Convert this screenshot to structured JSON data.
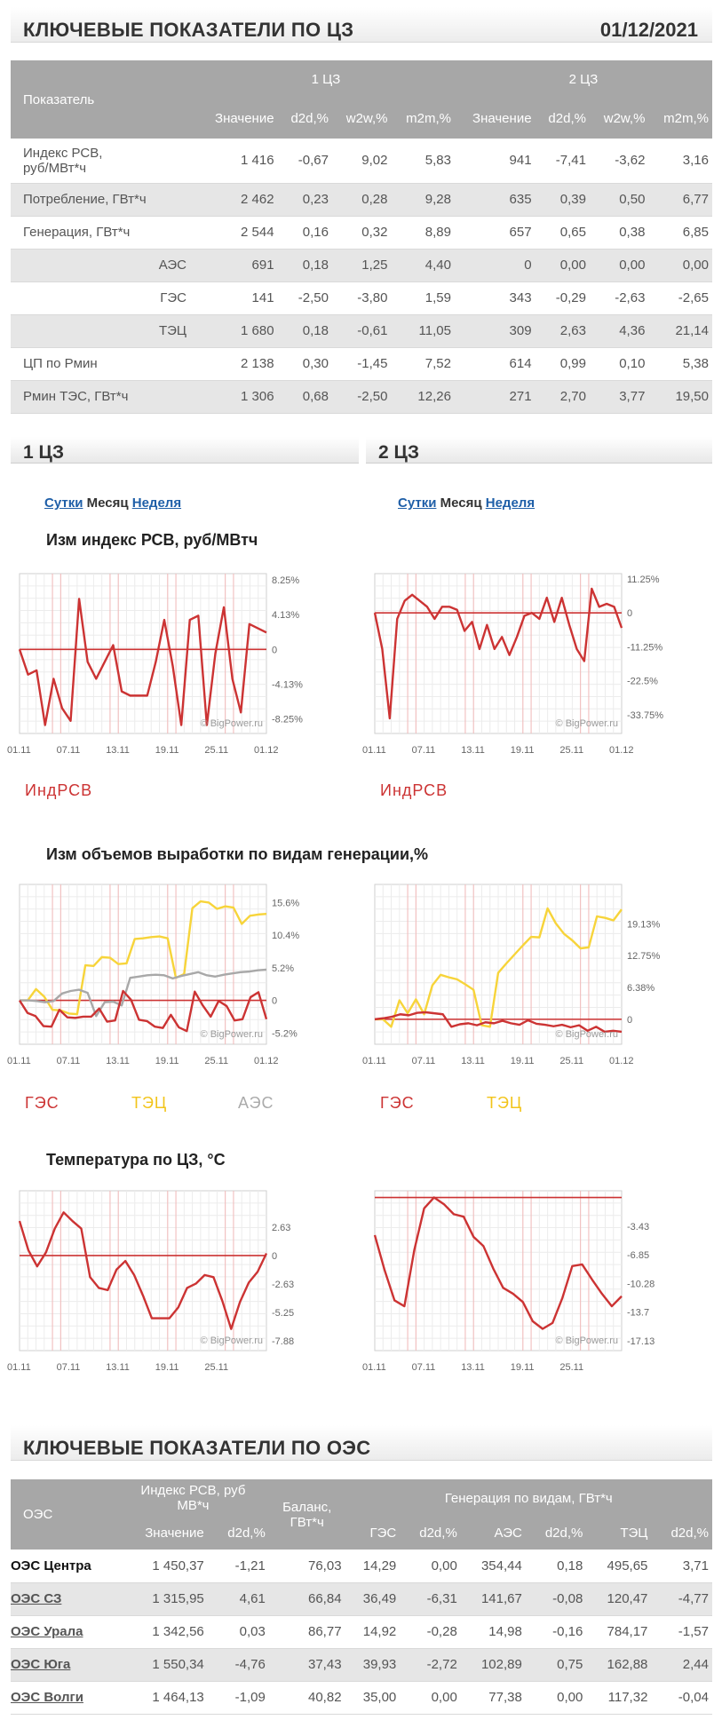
{
  "header1": {
    "title": "КЛЮЧЕВЫЕ ПОКАЗАТЕЛИ ПО ЦЗ",
    "date": "01/12/2021"
  },
  "kt": {
    "col_label": "Показатель",
    "zone1": "1 ЦЗ",
    "zone2": "2 ЦЗ",
    "sub": [
      "Значение",
      "d2d,%",
      "w2w,%",
      "m2m,%",
      "Значение",
      "d2d,%",
      "w2w,%",
      "m2m,%"
    ],
    "rows": [
      {
        "name": "Индекс РСВ, руб/МВт*ч",
        "name1": "Индекс РСВ,",
        "name2": "руб/МВт*ч",
        "indent": false,
        "vals": [
          "1 416",
          "-0,67",
          "9,02",
          "5,83",
          "941",
          "-7,41",
          "-3,62",
          "3,16"
        ]
      },
      {
        "name": "Потребление, ГВт*ч",
        "indent": false,
        "vals": [
          "2 462",
          "0,23",
          "0,28",
          "9,28",
          "635",
          "0,39",
          "0,50",
          "6,77"
        ]
      },
      {
        "name": "Генерация, ГВт*ч",
        "indent": false,
        "vals": [
          "2 544",
          "0,16",
          "0,32",
          "8,89",
          "657",
          "0,65",
          "0,38",
          "6,85"
        ]
      },
      {
        "name": "АЭС",
        "indent": true,
        "vals": [
          "691",
          "0,18",
          "1,25",
          "4,40",
          "0",
          "0,00",
          "0,00",
          "0,00"
        ]
      },
      {
        "name": "ГЭС",
        "indent": true,
        "vals": [
          "141",
          "-2,50",
          "-3,80",
          "1,59",
          "343",
          "-0,29",
          "-2,63",
          "-2,65"
        ]
      },
      {
        "name": "ТЭЦ",
        "indent": true,
        "vals": [
          "1 680",
          "0,18",
          "-0,61",
          "11,05",
          "309",
          "2,63",
          "4,36",
          "21,14"
        ]
      },
      {
        "name": "ЦП по Рмин",
        "indent": false,
        "vals": [
          "2 138",
          "0,30",
          "-1,45",
          "7,52",
          "614",
          "0,99",
          "0,10",
          "5,38"
        ]
      },
      {
        "name": "Рмин ТЭС, ГВт*ч",
        "indent": false,
        "vals": [
          "1 306",
          "0,68",
          "-2,50",
          "12,26",
          "271",
          "2,70",
          "3,77",
          "19,50"
        ]
      }
    ]
  },
  "sections": {
    "z1": "1 ЦЗ",
    "z2": "2 ЦЗ"
  },
  "period": {
    "day": "Сутки",
    "month": "Месяц",
    "week": "Неделя"
  },
  "chart_titles": {
    "price": "Изм индекс РСВ, руб/МВтч",
    "gen": "Изм объемов выработки по видам генерации,%",
    "temp": "Температура по ЦЗ, °С"
  },
  "watermark": "© BigPower.ru",
  "legends": {
    "price": "ИндРСВ",
    "ges": "ГЭС",
    "tec": "ТЭЦ",
    "aes": "АЭС"
  },
  "colors": {
    "price": "#cc3333",
    "ges": "#cc3333",
    "tec": "#f7d43a",
    "aes": "#a8a8a8"
  },
  "chart_data": [
    {
      "id": "price1",
      "type": "line",
      "yticks": [
        "8.25%",
        "4.13%",
        "0",
        "-4.13%",
        "-8.25%"
      ],
      "ylim": [
        -10,
        9
      ],
      "xticks": [
        "01.11",
        "07.11",
        "13.11",
        "19.11",
        "25.11",
        "01.12"
      ],
      "series": [
        {
          "name": "ИндРСВ",
          "values": [
            0,
            -3,
            -2.5,
            -9,
            -3.5,
            -7,
            -8.5,
            6,
            -1.5,
            -3.5,
            -1.5,
            0.5,
            -5,
            -5.5,
            -5.5,
            -5.5,
            -1.5,
            3.5,
            -2,
            -9,
            3.5,
            4,
            -9,
            -0.5,
            5,
            -3.5,
            -7.5,
            3,
            2.5,
            2
          ]
        }
      ]
    },
    {
      "id": "price2",
      "type": "line",
      "yticks": [
        "11.25%",
        "0",
        "-11.25%",
        "-22.5%",
        "-33.75%"
      ],
      "ylim": [
        -40,
        13
      ],
      "xticks": [
        "01.11",
        "07.11",
        "13.11",
        "19.11",
        "25.11",
        "01.12"
      ],
      "series": [
        {
          "name": "ИндРСВ",
          "values": [
            0,
            -12,
            -35,
            -2,
            4,
            6,
            4,
            2,
            -2,
            2,
            2,
            1,
            -6,
            -3,
            -12,
            -4,
            -12,
            -8,
            -14,
            -8,
            -1,
            0,
            -2,
            5,
            -3,
            5,
            -4,
            -12,
            -16,
            8,
            2,
            3,
            2,
            -5
          ]
        }
      ]
    },
    {
      "id": "gen1",
      "type": "line",
      "yticks": [
        "15.6%",
        "10.4%",
        "5.2%",
        "0",
        "-5.2%"
      ],
      "ylim": [
        -7,
        18.5
      ],
      "xticks": [
        "01.11",
        "07.11",
        "13.11",
        "19.11",
        "25.11",
        "01.12"
      ],
      "series": [
        {
          "name": "ТЭЦ",
          "values": [
            0,
            0,
            1.8,
            0.6,
            -1.5,
            -1.6,
            -2.1,
            -2.2,
            5.6,
            5.5,
            6.9,
            6.8,
            5.8,
            5.9,
            9.8,
            9.9,
            10.1,
            10.2,
            9.9,
            3.6,
            4.2,
            14.7,
            15.8,
            15.6,
            14.6,
            15.0,
            14.8,
            12.2,
            13.5,
            13.7,
            13.8
          ]
        },
        {
          "name": "АЭС",
          "values": [
            0,
            0,
            -0.1,
            -0.3,
            -0.1,
            1.1,
            1.5,
            1.7,
            1.2,
            -2.5,
            -0.3,
            -0.2,
            -0.8,
            3.6,
            3.8,
            4.0,
            4.1,
            4.0,
            3.5,
            3.9,
            4.2,
            4.5,
            4.0,
            3.8,
            4.1,
            4.3,
            4.5,
            4.6,
            4.8,
            4.9
          ]
        },
        {
          "name": "ГЭС",
          "values": [
            0,
            -2.0,
            -2.5,
            -4.1,
            -4.2,
            -1.5,
            -2.7,
            -2.8,
            -2.6,
            -2.6,
            -1.3,
            -3.4,
            -3.2,
            1.5,
            0.1,
            -3.1,
            -3.3,
            -4.2,
            -4.4,
            -2.3,
            -4.3,
            -4.9,
            1.4,
            -0.8,
            -2.6,
            -0.1,
            -0.9,
            -3.2,
            -3.0,
            0.5,
            1.3,
            -3.0
          ]
        }
      ]
    },
    {
      "id": "gen2",
      "type": "line",
      "yticks": [
        "19.13%",
        "12.75%",
        "6.38%",
        "0"
      ],
      "ylim": [
        -5,
        27
      ],
      "xticks": [
        "01.11",
        "07.11",
        "13.11",
        "19.11",
        "25.11",
        "01.12"
      ],
      "series": [
        {
          "name": "ТЭЦ",
          "values": [
            0,
            0,
            -1.5,
            3.8,
            1.2,
            4.0,
            1.0,
            6.8,
            8.9,
            8.4,
            8.0,
            7.0,
            5.9,
            -1.2,
            -1.5,
            9.3,
            11.2,
            13.0,
            14.8,
            16.5,
            16.4,
            22.2,
            19.2,
            17.1,
            15.8,
            14.2,
            14.4,
            20.6,
            20.3,
            19.8,
            22.0
          ]
        },
        {
          "name": "ГЭС",
          "values": [
            0,
            0.2,
            0.5,
            1.0,
            0.8,
            1.3,
            1.4,
            1.2,
            1.0,
            -1.5,
            -1.0,
            -0.8,
            -1.2,
            -0.6,
            -0.8,
            -0.3,
            -0.8,
            -1.1,
            -0.2,
            -0.9,
            -1.1,
            -1.4,
            -1.1,
            -1.6,
            -1.2,
            -2.3,
            -1.5,
            -2.5,
            -2.3,
            -2.5
          ]
        }
      ]
    },
    {
      "id": "temp1",
      "type": "line",
      "yticks": [
        "2.63",
        "0",
        "-2.63",
        "-5.25",
        "-7.88"
      ],
      "ylim": [
        -8.8,
        6
      ],
      "xticks": [
        "01.11",
        "07.11",
        "13.11",
        "19.11",
        "25.11"
      ],
      "series": [
        {
          "name": "Температура",
          "values": [
            3.2,
            0.5,
            -1.0,
            0.3,
            2.5,
            4.0,
            3.2,
            2.5,
            -2.0,
            -3.0,
            -3.2,
            -1.3,
            -0.5,
            -1.8,
            -3.7,
            -5.8,
            -5.8,
            -5.8,
            -4.8,
            -3.0,
            -2.6,
            -1.8,
            -2.0,
            -4.2,
            -6.8,
            -4.3,
            -2.5,
            -1.5,
            0.2
          ]
        }
      ]
    },
    {
      "id": "temp2",
      "type": "line",
      "yticks": [
        "-3.43",
        "-6.85",
        "-10.28",
        "-13.7",
        "-17.13"
      ],
      "ylim": [
        -18.3,
        0.8
      ],
      "xticks": [
        "01.11",
        "07.11",
        "13.11",
        "19.11",
        "25.11"
      ],
      "series": [
        {
          "name": "Температура",
          "values": [
            -4.5,
            -8.7,
            -12.3,
            -13.0,
            -6.3,
            -1.3,
            0.0,
            -0.8,
            -2.0,
            -2.3,
            -4.7,
            -5.8,
            -8.5,
            -10.8,
            -11.5,
            -12.5,
            -14.8,
            -15.7,
            -15.0,
            -12.0,
            -8.2,
            -8.0,
            -9.8,
            -11.5,
            -13.0,
            -11.8
          ]
        }
      ]
    }
  ],
  "header2": {
    "title": "КЛЮЧЕВЫЕ ПОКАЗАТЕЛИ ПО ОЭС"
  },
  "ot": {
    "h": {
      "oes": "ОЭС",
      "index": "Индекс РСВ, руб МВ*ч",
      "index1": "Индекс РСВ, руб",
      "index2": "МВ*ч",
      "bal": "Баланс,",
      "bal2": "ГВт*ч",
      "gen": "Генерация по видам, ГВт*ч"
    },
    "sub": [
      "Значение",
      "d2d,%",
      "ГЭС",
      "d2d,%",
      "АЭС",
      "d2d,%",
      "ТЭЦ",
      "d2d,%"
    ],
    "rows": [
      {
        "name": "ОЭС Центра",
        "link": false,
        "vals": [
          "1 450,37",
          "-1,21",
          "76,03",
          "14,29",
          "0,00",
          "354,44",
          "0,18",
          "495,65",
          "3,71"
        ]
      },
      {
        "name": "ОЭС СЗ",
        "link": true,
        "vals": [
          "1 315,95",
          "4,61",
          "66,84",
          "36,49",
          "-6,31",
          "141,67",
          "-0,08",
          "120,47",
          "-4,77"
        ]
      },
      {
        "name": "ОЭС Урала",
        "link": true,
        "vals": [
          "1 342,56",
          "0,03",
          "86,77",
          "14,92",
          "-0,28",
          "14,98",
          "-0,16",
          "784,17",
          "-1,57"
        ]
      },
      {
        "name": "ОЭС Юга",
        "link": true,
        "vals": [
          "1 550,34",
          "-4,76",
          "37,43",
          "39,93",
          "-2,72",
          "102,89",
          "0,75",
          "162,88",
          "2,44"
        ]
      },
      {
        "name": "ОЭС Волги",
        "link": true,
        "vals": [
          "1 464,13",
          "-1,09",
          "40,82",
          "35,00",
          "0,00",
          "77,38",
          "0,00",
          "117,32",
          "-0,04"
        ]
      }
    ]
  }
}
